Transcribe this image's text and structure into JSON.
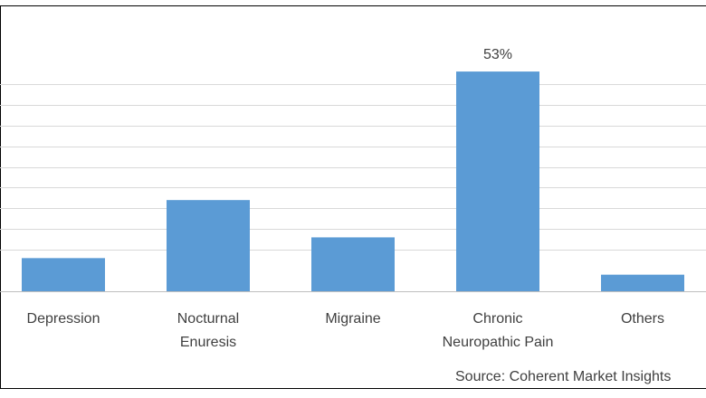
{
  "chart_data": {
    "type": "bar",
    "categories": [
      [
        "Depression"
      ],
      [
        "Nocturnal",
        "Enuresis"
      ],
      [
        "Migraine"
      ],
      [
        "Chronic",
        "Neuropathic Pain"
      ],
      [
        "Others"
      ]
    ],
    "values": [
      8,
      22,
      13,
      53,
      4
    ],
    "data_labels": [
      "",
      "",
      "",
      "53%",
      ""
    ],
    "ylim": [
      0,
      60
    ],
    "grid": true,
    "bar_color": "#5b9bd5",
    "grid_color": "#d9d9d9",
    "axis_color": "#bfbfbf"
  },
  "source": "Source: Coherent Market Insights"
}
